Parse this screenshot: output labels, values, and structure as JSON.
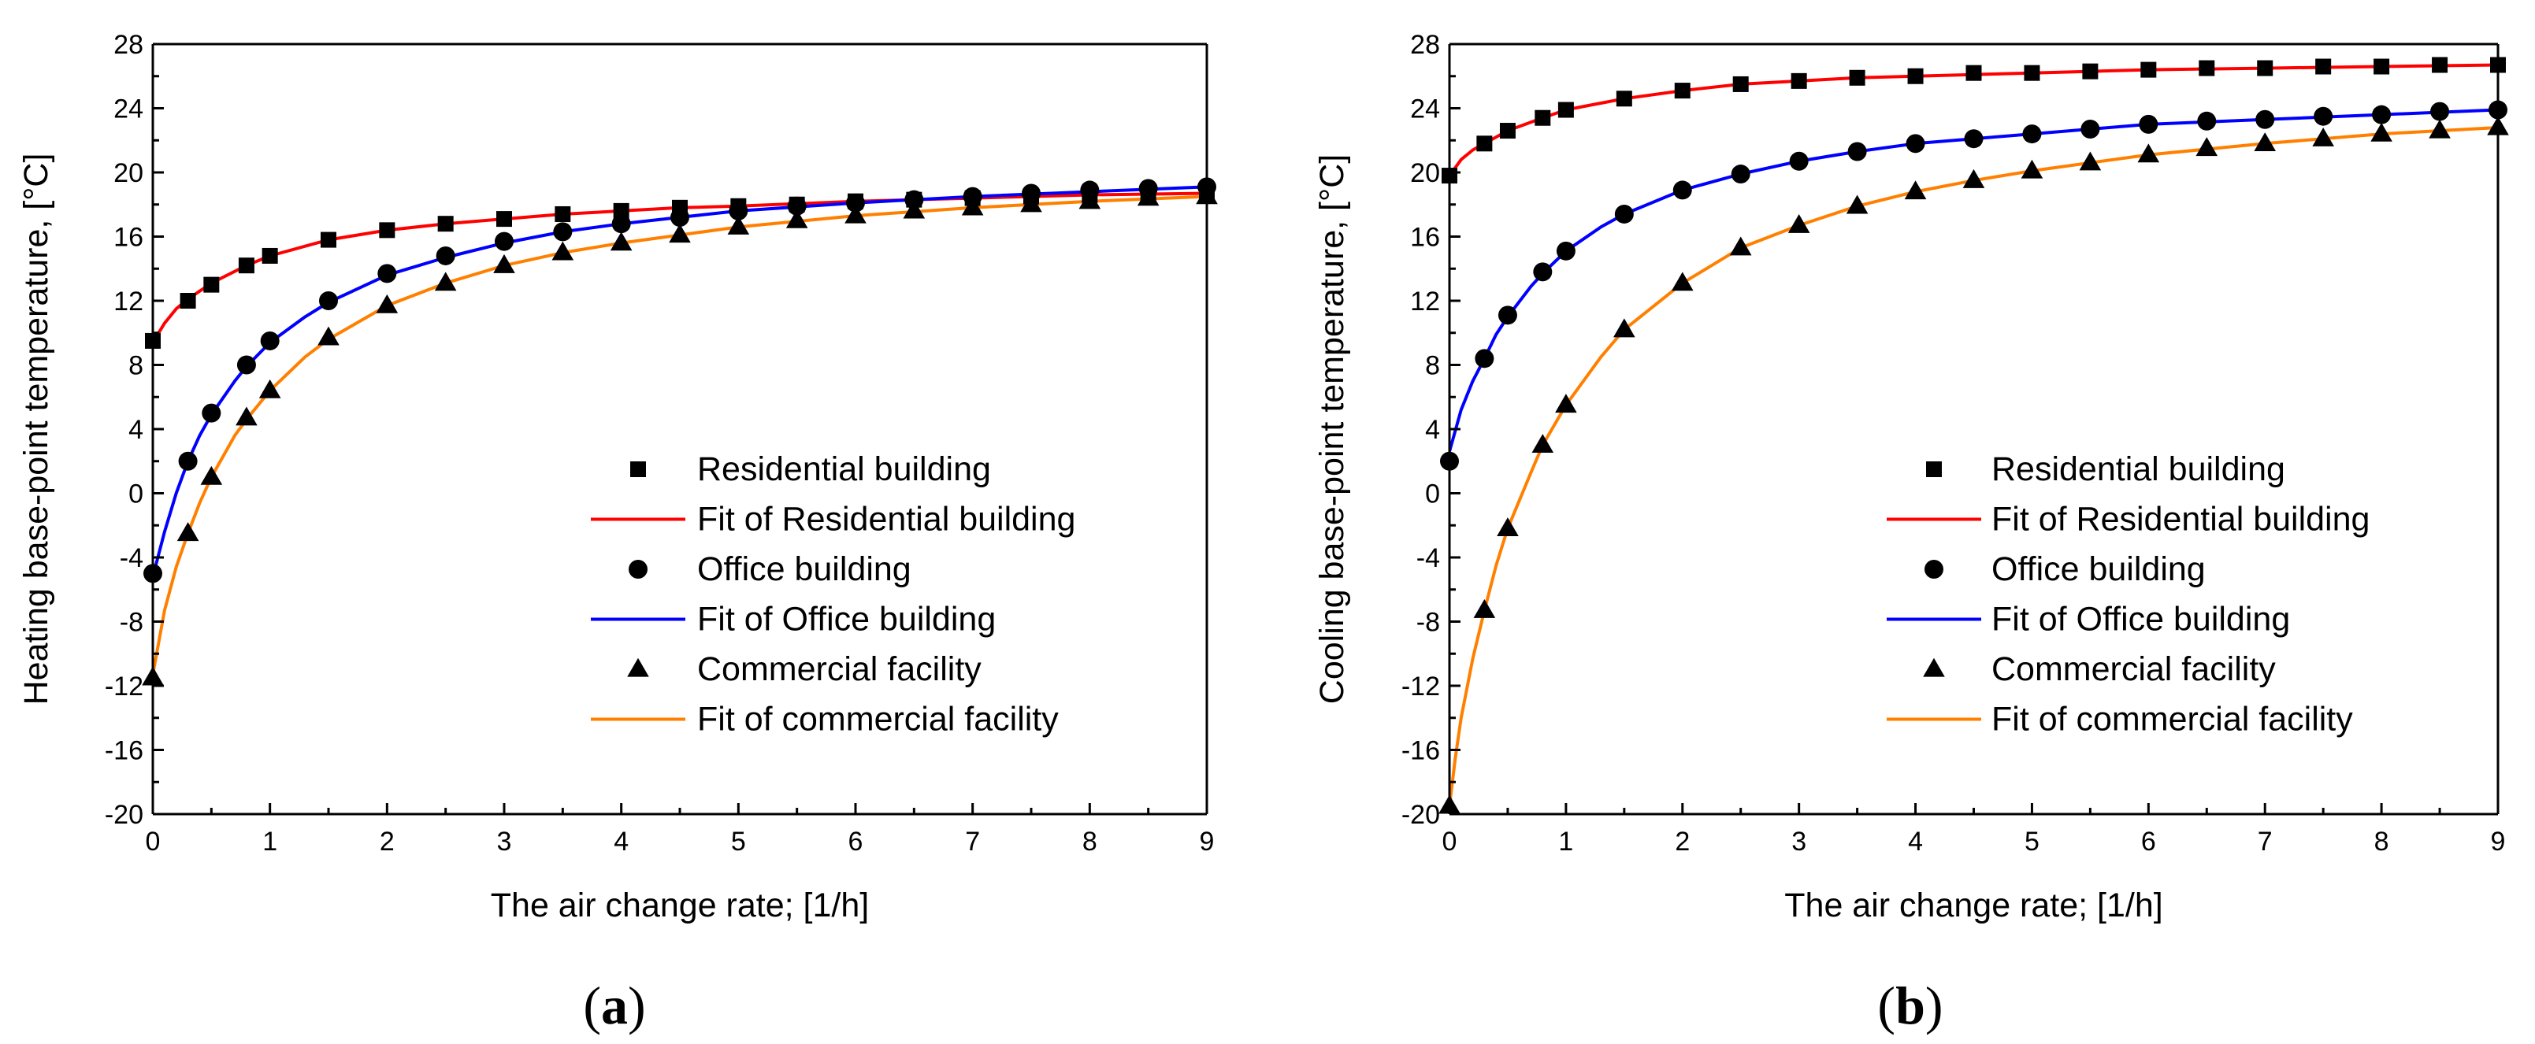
{
  "chart_data": [
    {
      "type": "scatter",
      "panel_label": "a",
      "xlabel": "The air change rate; [1/h]",
      "ylabel": "Heating base-point temperature, [°C]",
      "xlim": [
        0,
        9
      ],
      "ylim": [
        -20,
        28
      ],
      "xticks": [
        0,
        1,
        2,
        3,
        4,
        5,
        6,
        7,
        8,
        9
      ],
      "yticks": [
        -20,
        -16,
        -12,
        -8,
        -4,
        0,
        4,
        8,
        12,
        16,
        20,
        24,
        28
      ],
      "legend_position": "lower-right",
      "series": [
        {
          "name": "Residential building",
          "kind": "markers",
          "marker": "square",
          "x": [
            0,
            0.3,
            0.5,
            0.8,
            1,
            1.5,
            2,
            2.5,
            3,
            3.5,
            4,
            4.5,
            5,
            5.5,
            6,
            6.5,
            7,
            7.5,
            8,
            8.5,
            9
          ],
          "y": [
            9.5,
            12,
            13,
            14.2,
            14.8,
            15.8,
            16.4,
            16.8,
            17.1,
            17.4,
            17.6,
            17.8,
            17.9,
            18.0,
            18.2,
            18.3,
            18.4,
            18.5,
            18.6,
            18.6,
            18.7
          ]
        },
        {
          "name": "Fit of Residential building",
          "kind": "line",
          "color": "#ff0000",
          "x": [
            0,
            0.1,
            0.2,
            0.3,
            0.5,
            0.8,
            1,
            1.5,
            2,
            2.5,
            3,
            3.5,
            4,
            4.5,
            5,
            6,
            7,
            8,
            9
          ],
          "y": [
            9.4,
            10.6,
            11.5,
            12.1,
            13.1,
            14.2,
            14.8,
            15.8,
            16.4,
            16.8,
            17.1,
            17.4,
            17.6,
            17.8,
            17.9,
            18.2,
            18.4,
            18.6,
            18.7
          ]
        },
        {
          "name": "Office building",
          "kind": "markers",
          "marker": "circle",
          "x": [
            0,
            0.3,
            0.5,
            0.8,
            1,
            1.5,
            2,
            2.5,
            3,
            3.5,
            4,
            4.5,
            5,
            5.5,
            6,
            6.5,
            7,
            7.5,
            8,
            8.5,
            9
          ],
          "y": [
            -5,
            2,
            5,
            8,
            9.5,
            12,
            13.7,
            14.8,
            15.7,
            16.3,
            16.8,
            17.2,
            17.6,
            17.9,
            18.1,
            18.3,
            18.5,
            18.7,
            18.9,
            19,
            19.1
          ]
        },
        {
          "name": "Fit of Office building",
          "kind": "line",
          "color": "#0000ff",
          "x": [
            0,
            0.1,
            0.2,
            0.3,
            0.4,
            0.5,
            0.7,
            0.8,
            1,
            1.3,
            1.5,
            2,
            2.5,
            3,
            3.5,
            4,
            4.5,
            5,
            6,
            7,
            8,
            9
          ],
          "y": [
            -5.2,
            -2.4,
            0,
            2,
            3.6,
            4.9,
            7.0,
            7.9,
            9.4,
            11.0,
            11.9,
            13.6,
            14.7,
            15.6,
            16.3,
            16.8,
            17.2,
            17.6,
            18.1,
            18.5,
            18.8,
            19.1
          ]
        },
        {
          "name": "Commercial facility",
          "kind": "markers",
          "marker": "triangle",
          "x": [
            0,
            0.3,
            0.5,
            0.8,
            1,
            1.5,
            2,
            2.5,
            3,
            3.5,
            4,
            4.5,
            5,
            5.5,
            6,
            6.5,
            7,
            7.5,
            8,
            8.5,
            9
          ],
          "y": [
            -11.5,
            -2.5,
            1,
            4.7,
            6.4,
            9.7,
            11.7,
            13.1,
            14.2,
            15.0,
            15.6,
            16.1,
            16.6,
            17.0,
            17.3,
            17.6,
            17.8,
            18.0,
            18.2,
            18.4,
            18.5
          ]
        },
        {
          "name": "Fit of commercial facility",
          "kind": "line",
          "color": "#ff8000",
          "x": [
            0,
            0.1,
            0.2,
            0.3,
            0.4,
            0.5,
            0.7,
            0.8,
            1,
            1.3,
            1.5,
            2,
            2.5,
            3,
            3.5,
            4,
            4.5,
            5,
            6,
            7,
            8,
            9
          ],
          "y": [
            -11.3,
            -7.3,
            -4.6,
            -2.5,
            -0.6,
            1.0,
            3.6,
            4.6,
            6.4,
            8.5,
            9.6,
            11.7,
            13.1,
            14.2,
            15.0,
            15.6,
            16.1,
            16.6,
            17.3,
            17.8,
            18.2,
            18.5
          ]
        }
      ]
    },
    {
      "type": "scatter",
      "panel_label": "b",
      "xlabel": "The air change rate; [1/h]",
      "ylabel": "Cooling base-point temperature, [°C]",
      "xlim": [
        0,
        9
      ],
      "ylim": [
        -20,
        28
      ],
      "xticks": [
        0,
        1,
        2,
        3,
        4,
        5,
        6,
        7,
        8,
        9
      ],
      "yticks": [
        -20,
        -16,
        -12,
        -8,
        -4,
        0,
        4,
        8,
        12,
        16,
        20,
        24,
        28
      ],
      "legend_position": "lower-right",
      "series": [
        {
          "name": "Residential building",
          "kind": "markers",
          "marker": "square",
          "x": [
            0,
            0.3,
            0.5,
            0.8,
            1,
            1.5,
            2,
            2.5,
            3,
            3.5,
            4,
            4.5,
            5,
            5.5,
            6,
            6.5,
            7,
            7.5,
            8,
            8.5,
            9
          ],
          "y": [
            19.8,
            21.8,
            22.6,
            23.4,
            23.9,
            24.6,
            25.1,
            25.5,
            25.7,
            25.9,
            26.0,
            26.2,
            26.2,
            26.3,
            26.4,
            26.5,
            26.5,
            26.6,
            26.6,
            26.7,
            26.7
          ]
        },
        {
          "name": "Fit of Residential building",
          "kind": "line",
          "color": "#ff0000",
          "x": [
            0,
            0.1,
            0.2,
            0.3,
            0.5,
            0.8,
            1,
            1.5,
            2,
            2.5,
            3,
            3.5,
            4,
            5,
            6,
            7,
            8,
            9
          ],
          "y": [
            19.8,
            20.8,
            21.4,
            21.8,
            22.6,
            23.4,
            23.9,
            24.6,
            25.1,
            25.5,
            25.7,
            25.9,
            26.0,
            26.2,
            26.4,
            26.5,
            26.6,
            26.7
          ]
        },
        {
          "name": "Office building",
          "kind": "markers",
          "marker": "circle",
          "x": [
            0,
            0.3,
            0.5,
            0.8,
            1,
            1.5,
            2,
            2.5,
            3,
            3.5,
            4,
            4.5,
            5,
            5.5,
            6,
            6.5,
            7,
            7.5,
            8,
            8.5,
            9
          ],
          "y": [
            2,
            8.4,
            11.1,
            13.8,
            15.1,
            17.4,
            18.9,
            19.9,
            20.7,
            21.3,
            21.8,
            22.1,
            22.4,
            22.7,
            23.0,
            23.2,
            23.3,
            23.5,
            23.6,
            23.8,
            23.9
          ]
        },
        {
          "name": "Fit of Office building",
          "kind": "line",
          "color": "#0000ff",
          "x": [
            0,
            0.1,
            0.2,
            0.3,
            0.4,
            0.5,
            0.7,
            0.8,
            1,
            1.3,
            1.5,
            2,
            2.5,
            3,
            3.5,
            4,
            4.5,
            5,
            6,
            7,
            8,
            9
          ],
          "y": [
            2.6,
            5.2,
            7.0,
            8.4,
            9.9,
            11.0,
            12.9,
            13.7,
            15.1,
            16.6,
            17.4,
            18.9,
            19.9,
            20.7,
            21.3,
            21.8,
            22.1,
            22.4,
            23.0,
            23.3,
            23.6,
            23.9
          ]
        },
        {
          "name": "Commercial facility",
          "kind": "markers",
          "marker": "triangle",
          "x": [
            0,
            0.3,
            0.5,
            0.8,
            1,
            1.5,
            2,
            2.5,
            3,
            3.5,
            4,
            4.5,
            5,
            5.5,
            6,
            6.5,
            7,
            7.5,
            8,
            8.5,
            9
          ],
          "y": [
            -19.5,
            -7.3,
            -2.2,
            3.0,
            5.5,
            10.2,
            13.1,
            15.3,
            16.7,
            17.9,
            18.8,
            19.5,
            20.1,
            20.6,
            21.1,
            21.5,
            21.8,
            22.1,
            22.4,
            22.6,
            22.8
          ]
        },
        {
          "name": "Fit of commercial facility",
          "kind": "line",
          "color": "#ff8000",
          "x": [
            0,
            0.05,
            0.1,
            0.2,
            0.3,
            0.4,
            0.5,
            0.7,
            0.8,
            1,
            1.3,
            1.5,
            2,
            2.5,
            3,
            3.5,
            4,
            4.5,
            5,
            6,
            7,
            8,
            9
          ],
          "y": [
            -19.5,
            -16.5,
            -14.0,
            -10.3,
            -7.3,
            -4.5,
            -2.2,
            1.3,
            3.0,
            5.5,
            8.5,
            10.2,
            13.1,
            15.3,
            16.7,
            17.9,
            18.8,
            19.5,
            20.1,
            21.1,
            21.8,
            22.4,
            22.8
          ]
        }
      ]
    }
  ]
}
